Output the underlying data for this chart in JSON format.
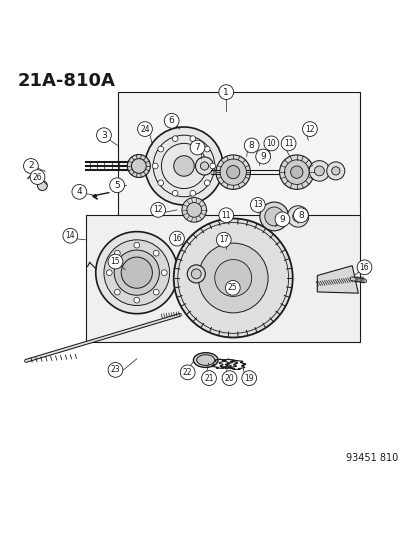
{
  "title": "21A-810A",
  "fig_id": "93451 810",
  "bg_color": "#ffffff",
  "line_color": "#1a1a1a",
  "title_fontsize": 13,
  "figid_fontsize": 7,
  "label_fontsize": 7
}
